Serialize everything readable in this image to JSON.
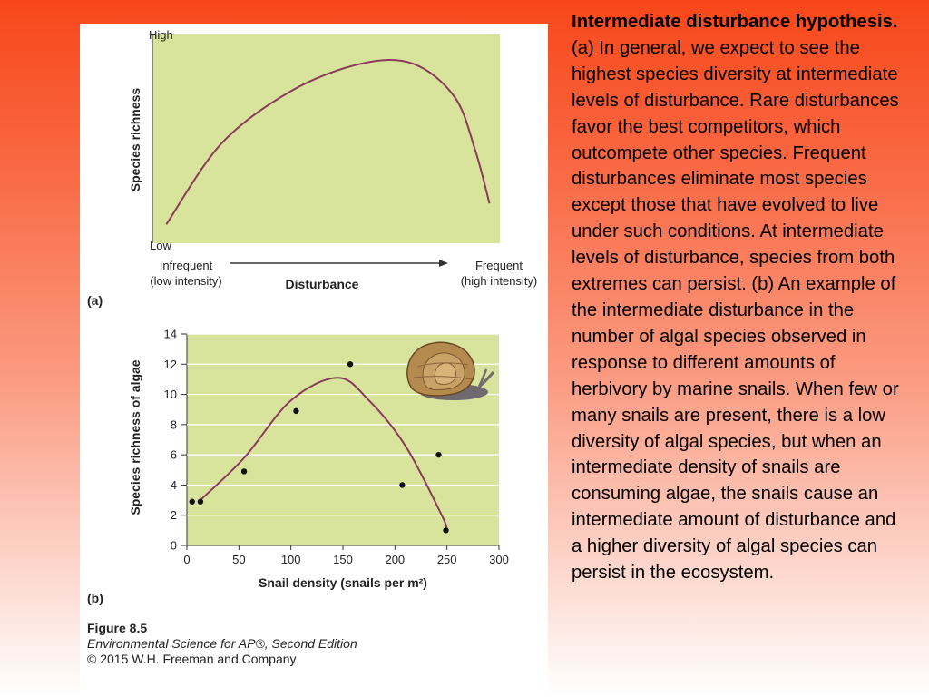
{
  "caption": {
    "title": "Intermediate disturbance hypothesis.",
    "body": " (a) In general, we expect to see the highest species diversity at intermediate levels of disturbance. Rare disturbances favor the best competitors, which outcompete other species. Frequent disturbances eliminate most species except those that have evolved to live under such conditions. At intermediate levels of disturbance, species from both extremes can persist. (b) An example of the intermediate disturbance in the number of algal species observed in response to different amounts of herbivory by marine snails. When few or many snails are present, there is a low diversity of algal species, but when an intermediate density of snails are consuming algae, the snails cause an intermediate amount of disturbance and a higher diversity of algal species can persist in the ecosystem."
  },
  "figure": {
    "number": "Figure 8.5",
    "book": "Environmental Science for AP®, Second Edition",
    "copyright": "© 2015 W.H. Freeman and Company"
  },
  "colors": {
    "plot_bg": "#d8e49c",
    "curve": "#8b3a5c",
    "axis": "#333333"
  },
  "chart_data": [
    {
      "panel": "(a)",
      "type": "line",
      "title": "",
      "ylabel": "Species richness",
      "xlabel": "Disturbance",
      "y_high_label": "High",
      "y_low_label": "Low",
      "x_left_label_1": "Infrequent",
      "x_left_label_2": "(low intensity)",
      "x_right_label_1": "Frequent",
      "x_right_label_2": "(high intensity)",
      "xlim": [
        0,
        100
      ],
      "ylim": [
        0,
        100
      ],
      "curve": {
        "x": [
          4,
          20,
          40,
          60,
          75,
          87,
          93,
          97
        ],
        "y": [
          9,
          48,
          73,
          86,
          86,
          70,
          44,
          19
        ]
      }
    },
    {
      "panel": "(b)",
      "type": "scatter",
      "title": "",
      "xlabel": "Snail density (snails per m²)",
      "ylabel": "Species richness of algae",
      "xlim": [
        0,
        300
      ],
      "ylim": [
        0,
        14
      ],
      "xticks": [
        0,
        50,
        100,
        150,
        200,
        250,
        300
      ],
      "yticks": [
        0,
        2,
        4,
        6,
        8,
        10,
        12,
        14
      ],
      "points": {
        "x": [
          5,
          13,
          55,
          105,
          157,
          207,
          242,
          249
        ],
        "y": [
          2.9,
          2.9,
          4.9,
          8.9,
          12,
          4,
          6,
          1
        ]
      },
      "trend": {
        "x": [
          13,
          55,
          100,
          145,
          175,
          210,
          245,
          250
        ],
        "y": [
          3,
          5.8,
          9.6,
          11.1,
          9.6,
          6.6,
          2,
          1
        ]
      }
    }
  ]
}
